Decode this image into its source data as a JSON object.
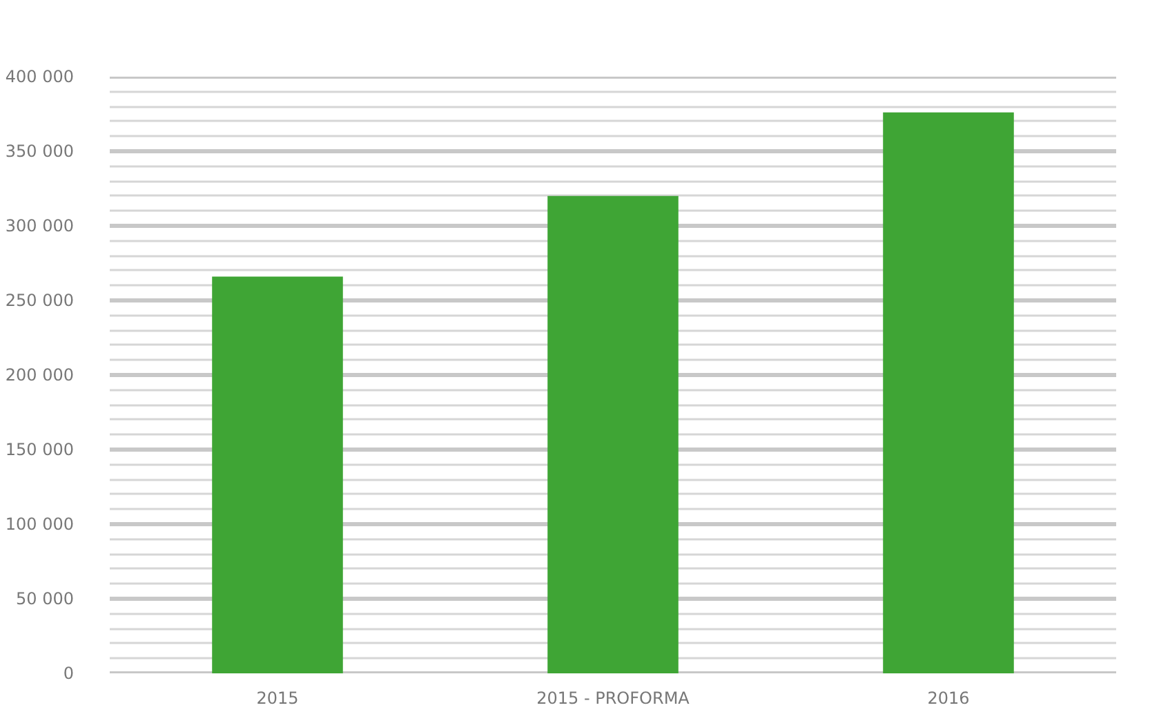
{
  "chart_data": {
    "type": "bar",
    "categories": [
      "2015",
      "2015 - PROFORMA",
      "2016"
    ],
    "values": [
      266000,
      320000,
      376000
    ],
    "color": "#3fa535",
    "ylim": [
      0,
      400000
    ],
    "yticks": [
      {
        "value": 0,
        "label": "0"
      },
      {
        "value": 10000,
        "label": null
      },
      {
        "value": 20000,
        "label": null
      },
      {
        "value": 30000,
        "label": null
      },
      {
        "value": 40000,
        "label": null
      },
      {
        "value": 50000,
        "label": "50 000"
      },
      {
        "value": 60000,
        "label": null
      },
      {
        "value": 70000,
        "label": null
      },
      {
        "value": 80000,
        "label": null
      },
      {
        "value": 90000,
        "label": null
      },
      {
        "value": 100000,
        "label": "100 000"
      },
      {
        "value": 110000,
        "label": null
      },
      {
        "value": 120000,
        "label": null
      },
      {
        "value": 130000,
        "label": null
      },
      {
        "value": 140000,
        "label": null
      },
      {
        "value": 150000,
        "label": "150 000"
      },
      {
        "value": 160000,
        "label": null
      },
      {
        "value": 170000,
        "label": null
      },
      {
        "value": 180000,
        "label": null
      },
      {
        "value": 190000,
        "label": null
      },
      {
        "value": 200000,
        "label": "200 000"
      },
      {
        "value": 210000,
        "label": null
      },
      {
        "value": 220000,
        "label": null
      },
      {
        "value": 230000,
        "label": null
      },
      {
        "value": 240000,
        "label": null
      },
      {
        "value": 250000,
        "label": "250 000"
      },
      {
        "value": 260000,
        "label": null
      },
      {
        "value": 270000,
        "label": null
      },
      {
        "value": 280000,
        "label": null
      },
      {
        "value": 290000,
        "label": null
      },
      {
        "value": 300000,
        "label": "300 000"
      },
      {
        "value": 310000,
        "label": null
      },
      {
        "value": 320000,
        "label": null
      },
      {
        "value": 330000,
        "label": null
      },
      {
        "value": 340000,
        "label": null
      },
      {
        "value": 350000,
        "label": "350 000"
      },
      {
        "value": 360000,
        "label": null
      },
      {
        "value": 370000,
        "label": null
      },
      {
        "value": 380000,
        "label": null
      },
      {
        "value": 390000,
        "label": null
      },
      {
        "value": 400000,
        "label": "400 000"
      }
    ],
    "grid": "y"
  }
}
